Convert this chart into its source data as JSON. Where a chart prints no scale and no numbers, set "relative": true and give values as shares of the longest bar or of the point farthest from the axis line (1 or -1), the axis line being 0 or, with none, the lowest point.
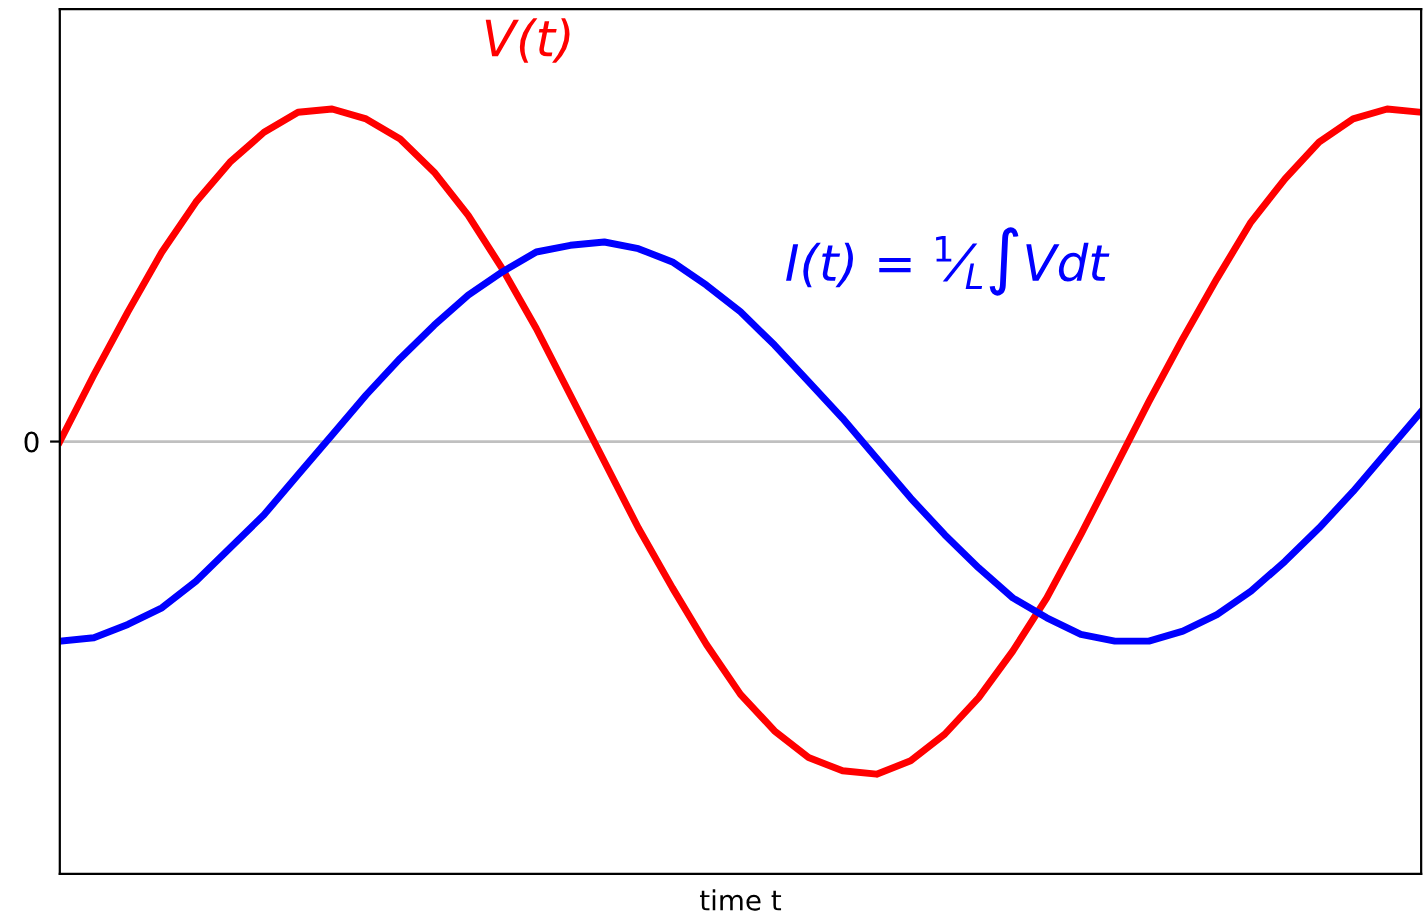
{
  "chart_data": {
    "type": "line",
    "relative": true,
    "xlabel": "time t",
    "categories": [
      null,
      null,
      null,
      null,
      null,
      null,
      null,
      null,
      null,
      null,
      null,
      null,
      null,
      null,
      null,
      null,
      null,
      null,
      null,
      null,
      null,
      null,
      null,
      null,
      null,
      null,
      null,
      null,
      null,
      null,
      null,
      null,
      null,
      null,
      null,
      null,
      null,
      null,
      null,
      null,
      null
    ],
    "series": [
      {
        "name": "V(t)",
        "color": "#ff0000",
        "values": [
          0,
          0.2,
          0.39,
          0.57,
          0.72,
          0.84,
          0.93,
          0.99,
          1.0,
          0.97,
          0.91,
          0.81,
          0.68,
          0.52,
          0.34,
          0.14,
          -0.06,
          -0.26,
          -0.44,
          -0.61,
          -0.76,
          -0.87,
          -0.95,
          -0.99,
          -1.0,
          -0.96,
          -0.88,
          -0.77,
          -0.63,
          -0.47,
          -0.28,
          -0.08,
          0.12,
          0.31,
          0.49,
          0.66,
          0.79,
          0.9,
          0.97,
          1.0,
          0.99
        ]
      },
      {
        "name": "I(t) = $^{1}$⁄$_{L}$∫Vdt",
        "color": "#0000ff",
        "values": [
          -0.6,
          -0.59,
          -0.55,
          -0.5,
          -0.42,
          -0.32,
          -0.22,
          -0.1,
          0.02,
          0.14,
          0.25,
          0.35,
          0.44,
          0.51,
          0.57,
          0.59,
          0.6,
          0.58,
          0.54,
          0.47,
          0.39,
          0.29,
          0.18,
          0.07,
          -0.05,
          -0.17,
          -0.28,
          -0.38,
          -0.47,
          -0.53,
          -0.58,
          -0.6,
          -0.6,
          -0.57,
          -0.52,
          -0.45,
          -0.36,
          -0.26,
          -0.15,
          -0.03,
          0.09
        ]
      }
    ],
    "ref_lines": [
      {
        "axis": "y",
        "value": 0,
        "label": "0",
        "color": "#c0c0c0"
      }
    ],
    "legend": false,
    "grid": false
  }
}
